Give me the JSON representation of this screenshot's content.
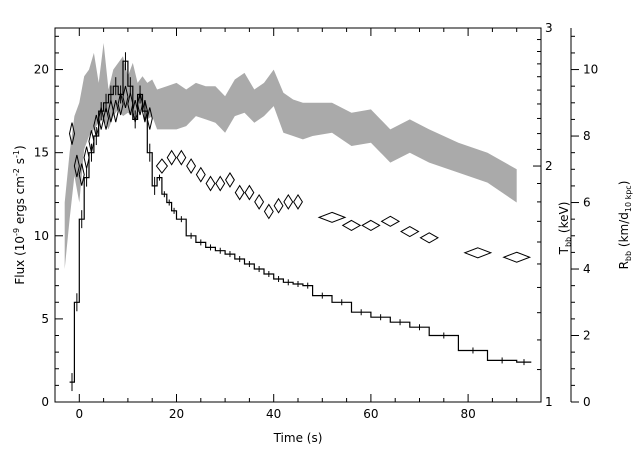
{
  "chart_data": {
    "type": "line",
    "xlabel": "Time (s)",
    "xlim": [
      -5,
      95
    ],
    "xticks": [
      0,
      20,
      40,
      60,
      80
    ],
    "left_axis": {
      "label_prefix": "Flux (10",
      "label_exp1": "-9",
      "label_mid": " ergs cm",
      "label_exp2": "-2",
      "label_mid2": " s",
      "label_exp3": "-1",
      "label_suffix": ")",
      "ylim": [
        0,
        22.5
      ],
      "ticks": [
        0,
        5,
        10,
        15,
        20
      ]
    },
    "temp_axis": {
      "label_main": "T",
      "label_sub": "bb",
      "label_rest": " (keV)",
      "scale": "log",
      "ylim": [
        1,
        3
      ],
      "ticks": [
        1,
        2,
        3
      ]
    },
    "radius_axis": {
      "label_main": "R",
      "label_sub": "bb",
      "label_mid": " (km/d",
      "label_sub2": "10 kpc",
      "label_rest": ")",
      "ylim": [
        0,
        11.25
      ],
      "ticks": [
        0,
        2,
        4,
        6,
        8,
        10
      ]
    },
    "series": [
      {
        "kind": "flux-histogram",
        "color": "#000000",
        "x": [
          -2,
          -1,
          0,
          1,
          2,
          3,
          4,
          5,
          6,
          7,
          8,
          9,
          10,
          11,
          12,
          13,
          14,
          15,
          16,
          17,
          18,
          19,
          20,
          22,
          24,
          26,
          28,
          30,
          32,
          34,
          36,
          38,
          40,
          42,
          44,
          46,
          48,
          52,
          56,
          60,
          64,
          68,
          72,
          78,
          84,
          90
        ],
        "y": [
          1.2,
          6.0,
          11.0,
          13.5,
          15.0,
          16.0,
          17.5,
          18.0,
          18.5,
          19.0,
          18.5,
          20.5,
          19.0,
          17.0,
          18.5,
          17.5,
          15.0,
          13.0,
          13.5,
          12.5,
          12.0,
          11.5,
          11.0,
          10.0,
          9.6,
          9.3,
          9.1,
          8.9,
          8.6,
          8.3,
          8.0,
          7.7,
          7.4,
          7.2,
          7.1,
          7.0,
          6.4,
          6.0,
          5.4,
          5.1,
          4.8,
          4.5,
          4.0,
          3.1,
          2.5,
          2.4
        ]
      },
      {
        "kind": "temperature-diamonds",
        "color": "#000000",
        "x": [
          -1.5,
          -0.5,
          0.5,
          1.5,
          2.5,
          3.5,
          4.5,
          5.5,
          6.5,
          7.5,
          8.5,
          9.5,
          10.5,
          11.5,
          12.5,
          13.5,
          14.5,
          17,
          19,
          21,
          23,
          25,
          27,
          29,
          31,
          33,
          35,
          37,
          39,
          41,
          43,
          45,
          52,
          56,
          60,
          64,
          68,
          72,
          82,
          90
        ],
        "y": [
          2.2,
          2.0,
          1.95,
          2.05,
          2.15,
          2.25,
          2.3,
          2.3,
          2.35,
          2.35,
          2.4,
          2.45,
          2.4,
          2.35,
          2.4,
          2.35,
          2.3,
          2.0,
          2.05,
          2.05,
          2.0,
          1.95,
          1.9,
          1.9,
          1.92,
          1.85,
          1.85,
          1.8,
          1.75,
          1.78,
          1.8,
          1.8,
          1.72,
          1.68,
          1.68,
          1.7,
          1.65,
          1.62,
          1.55,
          1.53
        ]
      },
      {
        "kind": "radius-band",
        "color": "#aaaaaa",
        "x": [
          -3,
          -2,
          -1,
          0,
          1,
          2,
          3,
          4,
          5,
          6,
          7,
          8,
          9,
          10,
          11,
          12,
          13,
          14,
          15,
          16,
          18,
          20,
          22,
          24,
          26,
          28,
          30,
          32,
          34,
          36,
          38,
          40,
          42,
          44,
          46,
          48,
          52,
          56,
          60,
          64,
          68,
          72,
          78,
          84,
          90
        ],
        "low": [
          4.0,
          5.5,
          6.8,
          6.0,
          7.6,
          8.0,
          8.2,
          8.4,
          8.5,
          8.2,
          8.6,
          8.8,
          8.6,
          8.7,
          8.6,
          8.7,
          8.8,
          8.5,
          8.6,
          8.2,
          8.2,
          8.2,
          8.3,
          8.6,
          8.5,
          8.4,
          8.1,
          8.6,
          8.7,
          8.4,
          8.6,
          8.9,
          8.1,
          8.0,
          7.9,
          8.0,
          8.1,
          7.7,
          7.8,
          7.2,
          7.5,
          7.2,
          6.9,
          6.6,
          6.0
        ],
        "high": [
          6.0,
          7.5,
          8.6,
          9.0,
          9.8,
          10.0,
          10.5,
          9.6,
          10.8,
          9.4,
          10.0,
          10.2,
          10.4,
          9.8,
          10.2,
          9.6,
          9.8,
          9.6,
          9.7,
          9.4,
          9.5,
          9.6,
          9.4,
          9.6,
          9.5,
          9.5,
          9.2,
          9.7,
          9.9,
          9.4,
          9.6,
          10.0,
          9.3,
          9.1,
          9.0,
          9.0,
          9.0,
          8.7,
          8.8,
          8.2,
          8.5,
          8.2,
          7.8,
          7.5,
          7.0
        ]
      }
    ]
  }
}
